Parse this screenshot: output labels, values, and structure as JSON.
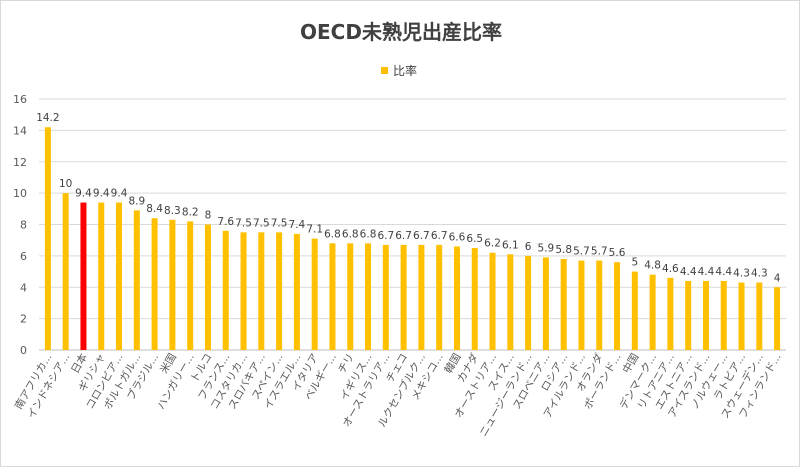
{
  "chart_data": {
    "type": "bar",
    "title": "OECD未熟児出産比率",
    "legend": {
      "label": "比率",
      "placement": "top"
    },
    "ylim": [
      0,
      16
    ],
    "yticks": [
      0,
      2,
      4,
      6,
      8,
      10,
      12,
      14,
      16
    ],
    "grid": true,
    "colors": {
      "default": "#FFC000",
      "highlight": "#FF0000"
    },
    "highlight_category": "日本",
    "categories": [
      "南アフリカ...",
      "インドネシア...",
      "日本",
      "ギリシャ",
      "コロンビア...",
      "ポルトガル...",
      "ブラジル...",
      "米国",
      "ハンガリー...",
      "トルコ",
      "フランス...",
      "コスタリカ...",
      "スロバキア...",
      "スペイン...",
      "イスラエル...",
      "イタリア",
      "ベルギー...",
      "チリ",
      "イギリス...",
      "オーストラリア...",
      "チェコ",
      "ルクセンブルク...",
      "メキシコ...",
      "韓国",
      "カナダ",
      "オーストリア...",
      "スイス...",
      "ニュージーランド...",
      "スロベニア...",
      "ロシア...",
      "アイルランド...",
      "オランダ",
      "ポーランド...",
      "中国",
      "デンマーク...",
      "リトアニア...",
      "エストニア...",
      "アイスランド...",
      "ノルウェー...",
      "ラトビア...",
      "スウェーデン...",
      "フィンランド..."
    ],
    "series": [
      {
        "name": "比率",
        "values": [
          14.2,
          10,
          9.4,
          9.4,
          9.4,
          8.9,
          8.4,
          8.3,
          8.2,
          8,
          7.6,
          7.5,
          7.5,
          7.5,
          7.4,
          7.1,
          6.8,
          6.8,
          6.8,
          6.7,
          6.7,
          6.7,
          6.7,
          6.6,
          6.5,
          6.2,
          6.1,
          6,
          5.9,
          5.8,
          5.7,
          5.7,
          5.6,
          5,
          4.8,
          4.6,
          4.4,
          4.4,
          4.4,
          4.3,
          4.3,
          4
        ]
      }
    ]
  }
}
